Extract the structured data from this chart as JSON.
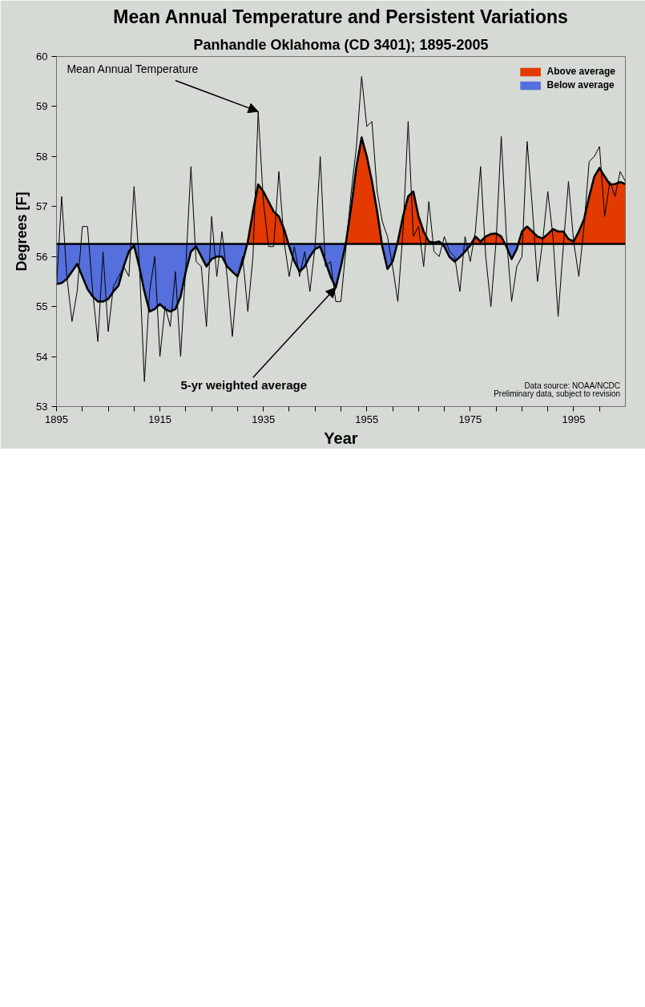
{
  "chart_data": {
    "type": "area",
    "title": "Mean Annual Temperature and Persistent Variations",
    "subtitle": "Panhandle Oklahoma (CD 3401); 1895-2005",
    "xlabel": "Year",
    "ylabel": "Degrees [F]",
    "x": [
      1895,
      1896,
      1897,
      1898,
      1899,
      1900,
      1901,
      1902,
      1903,
      1904,
      1905,
      1906,
      1907,
      1908,
      1909,
      1910,
      1911,
      1912,
      1913,
      1914,
      1915,
      1916,
      1917,
      1918,
      1919,
      1920,
      1921,
      1922,
      1923,
      1924,
      1925,
      1926,
      1927,
      1928,
      1929,
      1930,
      1931,
      1932,
      1933,
      1934,
      1935,
      1936,
      1937,
      1938,
      1939,
      1940,
      1941,
      1942,
      1943,
      1944,
      1945,
      1946,
      1947,
      1948,
      1949,
      1950,
      1951,
      1952,
      1953,
      1954,
      1955,
      1956,
      1957,
      1958,
      1959,
      1960,
      1961,
      1962,
      1963,
      1964,
      1965,
      1966,
      1967,
      1968,
      1969,
      1970,
      1971,
      1972,
      1973,
      1974,
      1975,
      1976,
      1977,
      1978,
      1979,
      1980,
      1981,
      1982,
      1983,
      1984,
      1985,
      1986,
      1987,
      1988,
      1989,
      1990,
      1991,
      1992,
      1993,
      1994,
      1995,
      1996,
      1997,
      1998,
      1999,
      2000,
      2001,
      2002,
      2003,
      2004,
      2005
    ],
    "series": [
      {
        "name": "Above average",
        "color": "#e23a00",
        "x": [
          1931.88,
          1932,
          1933,
          1934,
          1935,
          1936,
          1937,
          1938,
          1939,
          1939.86,
          null,
          1950.9,
          1951,
          1952,
          1953,
          1954,
          1955,
          1956,
          1957,
          1957.93,
          null,
          1960.88,
          1961,
          1962,
          1963,
          1964,
          1965,
          1966,
          1967,
          1968,
          1969,
          1969.5,
          null,
          1975.17,
          1976,
          1977,
          1978,
          1979,
          1980,
          1981,
          1981.75,
          null,
          1984.29,
          1985,
          1986,
          1987,
          1988,
          1989,
          1990,
          1991,
          1992,
          1993,
          1994,
          1995,
          1996,
          1997,
          1998,
          1999,
          2000,
          2001,
          2002,
          2003,
          2004,
          2005
        ],
        "values": [
          56.25,
          56.3,
          56.9,
          57.44,
          57.3,
          57.1,
          56.9,
          56.8,
          56.55,
          56.25,
          null,
          56.25,
          56.3,
          57.0,
          57.8,
          58.38,
          58.0,
          57.5,
          56.9,
          56.25,
          null,
          56.25,
          56.3,
          56.8,
          57.2,
          57.3,
          56.8,
          56.5,
          56.3,
          56.28,
          56.3,
          56.25,
          null,
          56.25,
          56.4,
          56.3,
          56.4,
          56.45,
          56.46,
          56.4,
          56.25,
          null,
          56.25,
          56.5,
          56.6,
          56.5,
          56.4,
          56.36,
          56.45,
          56.55,
          56.5,
          56.5,
          56.35,
          56.3,
          56.5,
          56.74,
          57.2,
          57.6,
          57.77,
          57.6,
          57.44,
          57.45,
          57.49,
          57.45
        ]
      },
      {
        "name": "Below average",
        "color": "#5570dc",
        "x": [
          1895,
          1895,
          1896,
          1897,
          1898,
          1899,
          1900,
          1901,
          1902,
          1903,
          1904,
          1905,
          1906,
          1907,
          1908,
          1909,
          1910,
          1911,
          1912,
          1913,
          1914,
          1915,
          1916,
          1917,
          1918,
          1919,
          1920,
          1921,
          1922,
          1923,
          1924,
          1925,
          1926,
          1927,
          1928,
          1929,
          1930,
          1931,
          1931.88,
          null,
          1939.86,
          1940,
          1941,
          1942,
          1943,
          1944,
          1945,
          1946,
          1947,
          1948,
          1949,
          1950,
          1950.9,
          null,
          1957.93,
          1958,
          1959,
          1960,
          1960.88,
          null,
          1969.5,
          1970,
          1971,
          1972,
          1973,
          1974,
          1975,
          1975.17,
          null,
          1981.75,
          1982,
          1983,
          1984,
          1984.29
        ],
        "values": [
          56.25,
          55.45,
          55.47,
          55.55,
          55.7,
          55.85,
          55.6,
          55.35,
          55.2,
          55.1,
          55.1,
          55.15,
          55.3,
          55.42,
          55.8,
          56.1,
          56.22,
          55.8,
          55.3,
          54.9,
          54.95,
          55.05,
          54.95,
          54.9,
          54.95,
          55.2,
          55.7,
          56.1,
          56.2,
          56.0,
          55.8,
          55.95,
          56.0,
          56.0,
          55.8,
          55.7,
          55.6,
          55.9,
          56.25,
          null,
          56.25,
          56.2,
          55.9,
          55.7,
          55.8,
          56.0,
          56.15,
          56.2,
          55.9,
          55.6,
          55.38,
          55.8,
          56.25,
          null,
          56.25,
          56.2,
          55.75,
          55.9,
          56.25,
          null,
          56.25,
          56.2,
          55.99,
          55.9,
          55.99,
          56.1,
          56.22,
          56.25,
          null,
          56.25,
          56.2,
          55.95,
          56.15,
          56.25
        ]
      },
      {
        "type": "line",
        "color": "#000000",
        "values": [
          55.4,
          57.2,
          55.6,
          54.7,
          55.3,
          56.6,
          56.6,
          55.3,
          54.3,
          56.1,
          54.5,
          55.4,
          55.6,
          55.8,
          55.6,
          57.4,
          55.9,
          53.5,
          55.3,
          56.0,
          54.0,
          55.0,
          54.6,
          55.7,
          54.0,
          55.8,
          57.8,
          55.9,
          55.8,
          54.6,
          56.8,
          55.6,
          56.5,
          55.6,
          54.4,
          55.6,
          56.0,
          54.9,
          56.0,
          58.9,
          57.1,
          56.2,
          56.2,
          57.7,
          56.3,
          55.6,
          56.2,
          55.6,
          56.1,
          55.3,
          56.2,
          58.0,
          55.8,
          55.9,
          55.1,
          55.1,
          56.2,
          57.3,
          58.2,
          59.6,
          58.6,
          58.7,
          57.3,
          56.7,
          56.4,
          55.8,
          55.1,
          56.5,
          58.7,
          56.4,
          56.6,
          55.8,
          57.1,
          56.1,
          56.0,
          56.4,
          56.1,
          56.0,
          55.3,
          56.4,
          55.9,
          56.5,
          57.8,
          56.0,
          55.0,
          56.3,
          58.4,
          56.4,
          55.1,
          55.8,
          56.0,
          58.3,
          57.0,
          55.5,
          56.3,
          57.3,
          56.4,
          54.8,
          56.2,
          57.5,
          56.3,
          55.6,
          56.6,
          57.9,
          58.0,
          58.2,
          56.8,
          57.5,
          57.2,
          57.7,
          57.5
        ]
      },
      {
        "type": "line",
        "color": "#000000",
        "values": [
          55.45,
          55.47,
          55.55,
          55.7,
          55.85,
          55.6,
          55.35,
          55.2,
          55.1,
          55.1,
          55.15,
          55.3,
          55.42,
          55.8,
          56.1,
          56.22,
          55.8,
          55.3,
          54.9,
          54.95,
          55.05,
          54.95,
          54.9,
          54.95,
          55.2,
          55.7,
          56.1,
          56.2,
          56.0,
          55.8,
          55.95,
          56.0,
          56.0,
          55.8,
          55.7,
          55.6,
          55.9,
          56.3,
          56.9,
          57.44,
          57.3,
          57.1,
          56.9,
          56.8,
          56.55,
          56.2,
          55.9,
          55.7,
          55.8,
          56.0,
          56.15,
          56.2,
          55.9,
          55.6,
          55.38,
          55.8,
          56.3,
          57.0,
          57.8,
          58.38,
          58.0,
          57.5,
          56.9,
          56.2,
          55.75,
          55.9,
          56.3,
          56.8,
          57.2,
          57.3,
          56.8,
          56.5,
          56.3,
          56.28,
          56.3,
          56.2,
          55.99,
          55.9,
          55.99,
          56.1,
          56.22,
          56.4,
          56.3,
          56.4,
          56.45,
          56.46,
          56.4,
          56.2,
          55.95,
          56.15,
          56.5,
          56.6,
          56.5,
          56.4,
          56.36,
          56.45,
          56.55,
          56.5,
          56.5,
          56.35,
          56.3,
          56.5,
          56.74,
          57.2,
          57.6,
          57.77,
          57.6,
          57.44,
          57.45,
          57.49,
          57.45
        ]
      }
    ],
    "ref_lines": [
      {
        "axis": "y",
        "value": 56.25,
        "color": "#000000"
      }
    ],
    "annotations": [
      {
        "text": "Mean Annual Temperature",
        "x": 1934,
        "y": 58.9
      },
      {
        "text": "5-yr weighted average",
        "x": 1949,
        "y": 55.38
      },
      "Data source: NOAA/NCDC",
      "Preliminary data, subject to revision"
    ],
    "xlim": [
      1895,
      2005
    ],
    "ylim": [
      53,
      60
    ],
    "xticks": [
      1895,
      {
        "value": 1900,
        "label": null
      },
      {
        "value": 1905,
        "label": null
      },
      {
        "value": 1910,
        "label": null
      },
      1915,
      {
        "value": 1920,
        "label": null
      },
      {
        "value": 1925,
        "label": null
      },
      {
        "value": 1930,
        "label": null
      },
      1935,
      {
        "value": 1940,
        "label": null
      },
      {
        "value": 1945,
        "label": null
      },
      {
        "value": 1950,
        "label": null
      },
      1955,
      {
        "value": 1960,
        "label": null
      },
      {
        "value": 1965,
        "label": null
      },
      {
        "value": 1970,
        "label": null
      },
      1975,
      {
        "value": 1980,
        "label": null
      },
      {
        "value": 1985,
        "label": null
      },
      {
        "value": 1990,
        "label": null
      },
      1995,
      {
        "value": 2000,
        "label": null
      }
    ],
    "yticks": [
      53,
      54,
      55,
      56,
      57,
      58,
      59,
      60
    ],
    "grid": false,
    "legend": "top right"
  }
}
